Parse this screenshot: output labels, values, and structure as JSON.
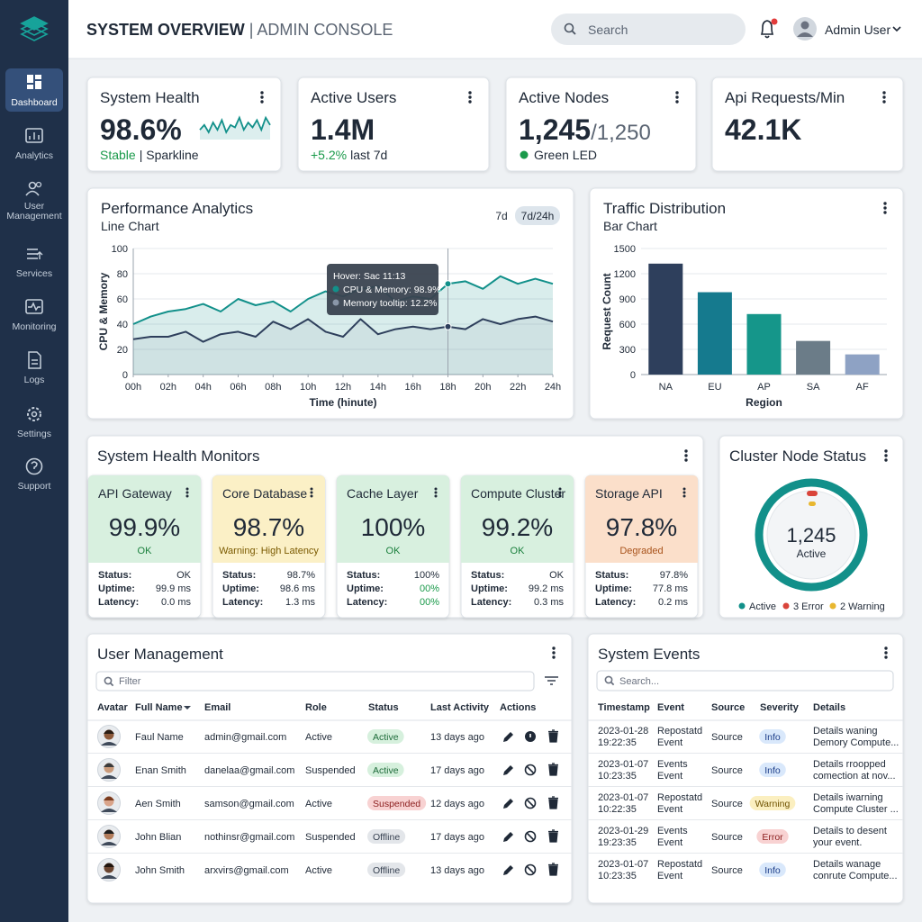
{
  "sidebar": {
    "items": [
      [
        "Dashboard"
      ],
      [
        "Analytics"
      ],
      [
        "User",
        "Management"
      ],
      [
        "Services"
      ],
      [
        "Monitoring"
      ],
      [
        "Logs"
      ],
      [
        "Settings"
      ],
      [
        "Support"
      ]
    ],
    "active": 0
  },
  "header": {
    "title": "SYSTEM OVERVIEW",
    "subtitle": "| ADMIN CONSOLE",
    "search": "Search",
    "user": "Admin User"
  },
  "kpis": [
    {
      "title": "System Health",
      "value": "98.6%",
      "note": "Stable",
      "note_color": "#1a9a4a",
      "note_rest": "| Sparkline",
      "sparkline": {
        "values": [
          4,
          6,
          3,
          7,
          4,
          8,
          3,
          6,
          5,
          9,
          4,
          7,
          5,
          8,
          4,
          9,
          6
        ],
        "ylim": [
          0,
          10
        ],
        "color": "#12908a"
      }
    },
    {
      "title": "Active Users",
      "value": "1.4M",
      "note": "+5.2%",
      "note_color": "#1a9a4a",
      "note_rest": "last 7d"
    },
    {
      "title": "Active Nodes",
      "value": "1,245",
      "value_suffix": "/1,250",
      "note": "Green LED",
      "dot_color": "#1a9a4a"
    },
    {
      "title": "Api Requests/Min",
      "value": "42.1K"
    }
  ],
  "performance": {
    "title": "Performance Analytics",
    "subtitle": "Line Chart",
    "ranges": [
      "7d",
      "7d/24h"
    ],
    "active_range": 1,
    "chart": {
      "type": "line",
      "x": [
        0,
        1,
        2,
        3,
        4,
        5,
        6,
        7,
        8,
        9,
        10,
        11,
        12,
        13,
        14,
        15,
        16,
        17,
        18,
        19,
        20,
        21,
        22,
        23,
        24
      ],
      "series": [
        {
          "name": "CPU & Memory",
          "color": "#12908a",
          "values": [
            40,
            46,
            50,
            52,
            56,
            50,
            60,
            55,
            58,
            50,
            60,
            66,
            62,
            68,
            70,
            58,
            62,
            60,
            72,
            74,
            68,
            78,
            72,
            76,
            72
          ]
        },
        {
          "name": "Memory",
          "color": "#2e3f5c",
          "values": [
            28,
            30,
            30,
            34,
            26,
            32,
            34,
            30,
            42,
            36,
            44,
            34,
            30,
            44,
            32,
            36,
            38,
            36,
            38,
            36,
            44,
            40,
            44,
            46,
            42
          ]
        }
      ],
      "xlim": [
        0,
        24
      ],
      "ylim": [
        0,
        100
      ],
      "xticks": [
        {
          "value": 0,
          "label": "00h"
        },
        {
          "value": 2,
          "label": "02h"
        },
        {
          "value": 4,
          "label": "04h"
        },
        {
          "value": 6,
          "label": "06h"
        },
        {
          "value": 8,
          "label": "08h"
        },
        {
          "value": 10,
          "label": "10h"
        },
        {
          "value": 12,
          "label": "12h"
        },
        {
          "value": 14,
          "label": "14h"
        },
        {
          "value": 16,
          "label": "16h"
        },
        {
          "value": 18,
          "label": "18h"
        },
        {
          "value": 20,
          "label": "20h"
        },
        {
          "value": 22,
          "label": "22h"
        },
        {
          "value": 24,
          "label": "24h"
        }
      ],
      "yticks": [
        0,
        20,
        40,
        60,
        80,
        100
      ],
      "xlabel": "Time (hinute)",
      "ylabel": "CPU & Memory",
      "grid": true,
      "cursor": 18,
      "tooltip": {
        "title": "Hover: Sac 11:13",
        "lines": [
          "CPU & Memory: 98.9%",
          "Memory tooltip: 12.2%"
        ]
      }
    }
  },
  "traffic": {
    "title": "Traffic Distribution",
    "subtitle": "Bar Chart",
    "chart": {
      "type": "bar",
      "categories": [
        "NA",
        "EU",
        "AP",
        "SA",
        "AF"
      ],
      "values": [
        1320,
        980,
        720,
        400,
        240
      ],
      "colors": [
        "#2e3f5c",
        "#157a8e",
        "#15968a",
        "#6b7c88",
        "#8ea2c4"
      ],
      "ylim": [
        0,
        1500
      ],
      "yticks": [
        0,
        300,
        600,
        900,
        1200,
        1500
      ],
      "xlabel": "Region",
      "ylabel": "Request Count",
      "grid": true
    }
  },
  "monitors": {
    "title": "System Health Monitors",
    "items": [
      {
        "name": "API Gateway",
        "value": "99.9%",
        "status": "OK",
        "tone": "ok",
        "rows": [
          {
            "label": "Status:",
            "value": "OK"
          },
          {
            "label": "Uptime:",
            "value": "99.9 ms"
          },
          {
            "label": "Latency:",
            "value": "0.0 ms"
          }
        ]
      },
      {
        "name": "Core Database",
        "value": "98.7%",
        "status": "Warning: High Latency",
        "tone": "warn",
        "rows": [
          {
            "label": "Status:",
            "value": "98.7%"
          },
          {
            "label": "Uptime:",
            "value": "98.6 ms"
          },
          {
            "label": "Latency:",
            "value": "1.3 ms"
          }
        ]
      },
      {
        "name": "Cache Layer",
        "value": "100%",
        "status": "OK",
        "tone": "ok",
        "rows": [
          {
            "label": "Status:",
            "value": "100%"
          },
          {
            "label": "Uptime:",
            "value": "00%",
            "color": "#1a9a4a"
          },
          {
            "label": "Latency:",
            "value": "00%",
            "color": "#1a9a4a"
          }
        ]
      },
      {
        "name": "Compute Cluster",
        "value": "99.2%",
        "status": "OK",
        "tone": "ok",
        "rows": [
          {
            "label": "Status:",
            "value": "OK"
          },
          {
            "label": "Uptime:",
            "value": "99.2 ms"
          },
          {
            "label": "Latency:",
            "value": "0.3 ms"
          }
        ]
      },
      {
        "name": "Storage API",
        "value": "97.8%",
        "status": "Degraded",
        "tone": "bad",
        "rows": [
          {
            "label": "Status:",
            "value": "97.8%"
          },
          {
            "label": "Uptime:",
            "value": "77.8 ms"
          },
          {
            "label": "Latency:",
            "value": "0.2 ms"
          }
        ]
      }
    ]
  },
  "cluster": {
    "title": "Cluster Node Status",
    "value": "1,245",
    "label": "Active",
    "legend": [
      {
        "label": "Active",
        "color": "#12908a"
      },
      {
        "label": "3 Error",
        "color": "#d9443a"
      },
      {
        "label": "2 Warning",
        "color": "#e8b730"
      }
    ]
  },
  "users": {
    "title": "User Management",
    "filter": "Filter",
    "columns": [
      "Avatar",
      "Full Name",
      "Email",
      "Role",
      "Status",
      "Last Activity",
      "Actions"
    ],
    "rows": [
      {
        "name": "Faul Name",
        "email": "admin@gmail.com",
        "role": "Active",
        "status": "Active",
        "tone": "green",
        "last": "13 days ago"
      },
      {
        "name": "Enan Smith",
        "email": "danelaa@gmail.com",
        "role": "Suspended",
        "status": "Active",
        "tone": "green",
        "last": "17 days ago"
      },
      {
        "name": "Aen Smith",
        "email": "samson@gmail.com",
        "role": "Active",
        "status": "Suspended",
        "tone": "red",
        "last": "12 days ago"
      },
      {
        "name": "John Blian",
        "email": "nothinsr@gmail.com",
        "role": "Suspended",
        "status": "Offline",
        "tone": "gray",
        "last": "17 days ago"
      },
      {
        "name": "John Smith",
        "email": "arxvirs@gmail.com",
        "role": "Active",
        "status": "Offline",
        "tone": "gray",
        "last": "13 days ago"
      }
    ]
  },
  "events": {
    "title": "System Events",
    "search": "Search...",
    "columns": [
      "Timestamp",
      "Event",
      "Source",
      "Severity",
      "Details"
    ],
    "rows": [
      {
        "date": "2023-01-28",
        "time": "19:22:35",
        "event": [
          "Repostatd",
          "Event"
        ],
        "source": "Source",
        "severity": "Info",
        "tone": "blue",
        "details": [
          "Details waning",
          "Demory Compute..."
        ]
      },
      {
        "date": "2023-01-07",
        "time": "10:23:35",
        "event": [
          "Events",
          "Event"
        ],
        "source": "Source",
        "severity": "Info",
        "tone": "blue",
        "details": [
          "Details rroopped",
          "comection at nov..."
        ]
      },
      {
        "date": "2023-01-07",
        "time": "10:22:35",
        "event": [
          "Repostatd",
          "Event"
        ],
        "source": "Source",
        "severity": "Warning",
        "tone": "yellow",
        "details": [
          "Details iwarning",
          "Compute Cluster ..."
        ]
      },
      {
        "date": "2023-01-29",
        "time": "19:23:35",
        "event": [
          "Events",
          "Event"
        ],
        "source": "Source",
        "severity": "Error",
        "tone": "red",
        "details": [
          "Details to desent",
          "your event."
        ]
      },
      {
        "date": "2023-01-07",
        "time": "10:23:35",
        "event": [
          "Repostatd",
          "Event"
        ],
        "source": "Source",
        "severity": "Info",
        "tone": "blue",
        "details": [
          "Details wanage",
          "conrute Compute..."
        ]
      }
    ]
  }
}
